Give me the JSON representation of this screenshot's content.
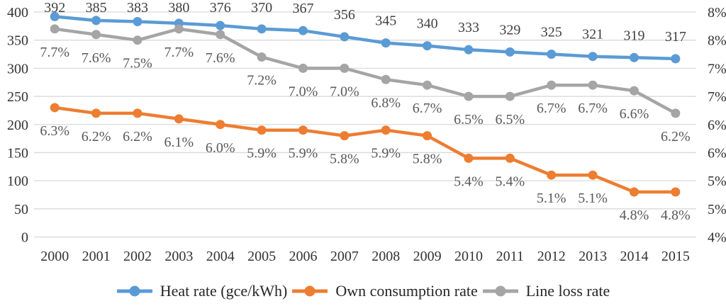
{
  "chart_data": {
    "type": "line",
    "title": "",
    "categories": [
      "2000",
      "2001",
      "2002",
      "2003",
      "2004",
      "2005",
      "2006",
      "2007",
      "2008",
      "2009",
      "2010",
      "2011",
      "2012",
      "2013",
      "2014",
      "2015"
    ],
    "series": [
      {
        "name": "Heat rate (gce/kWh)",
        "axis": "left",
        "color": "#5B9BD5",
        "label_color": "#404040",
        "label_placement": "above",
        "values": [
          392,
          385,
          383,
          380,
          376,
          370,
          367,
          356,
          345,
          340,
          333,
          329,
          325,
          321,
          319,
          317
        ],
        "labels": [
          "392",
          "385",
          "383",
          "380",
          "376",
          "370",
          "367",
          "356",
          "345",
          "340",
          "333",
          "329",
          "325",
          "321",
          "319",
          "317"
        ]
      },
      {
        "name": "Own consumption rate",
        "axis": "right",
        "color": "#ED7D31",
        "label_color": "#595959",
        "label_placement": "below",
        "values": [
          6.3,
          6.2,
          6.2,
          6.1,
          6.0,
          5.9,
          5.9,
          5.8,
          5.9,
          5.8,
          5.4,
          5.4,
          5.1,
          5.1,
          4.8,
          4.8
        ],
        "labels": [
          "6.3%",
          "6.2%",
          "6.2%",
          "6.1%",
          "6.0%",
          "5.9%",
          "5.9%",
          "5.8%",
          "5.9%",
          "5.8%",
          "5.4%",
          "5.4%",
          "5.1%",
          "5.1%",
          "4.8%",
          "4.8%"
        ]
      },
      {
        "name": "Line loss rate",
        "axis": "right",
        "color": "#A5A5A5",
        "label_color": "#595959",
        "label_placement": "below",
        "values": [
          7.7,
          7.6,
          7.5,
          7.7,
          7.6,
          7.2,
          7.0,
          7.0,
          6.8,
          6.7,
          6.5,
          6.5,
          6.7,
          6.7,
          6.6,
          6.2
        ],
        "labels": [
          "7.7%",
          "7.6%",
          "7.5%",
          "7.7%",
          "7.6%",
          "7.2%",
          "7.0%",
          "7.0%",
          "6.8%",
          "6.7%",
          "6.5%",
          "6.5%",
          "6.7%",
          "6.7%",
          "6.6%",
          "6.2%"
        ]
      }
    ],
    "left_axis": {
      "min": 0,
      "max": 400,
      "step": 50,
      "tick_labels": [
        "400",
        "350",
        "300",
        "250",
        "200",
        "150",
        "100",
        "50",
        "0"
      ]
    },
    "right_axis": {
      "min": 4,
      "max": 8,
      "step": 0.5,
      "tick_labels": [
        "8%",
        "8%",
        "7%",
        "7%",
        "6%",
        "6%",
        "5%",
        "5%",
        "4%"
      ]
    },
    "grid": true,
    "legend_position": "bottom",
    "colors": {
      "gridline": "#D9D9D9",
      "tick_text": "#333333",
      "legend_text": "#262626",
      "background": "#FFFFFF"
    }
  }
}
